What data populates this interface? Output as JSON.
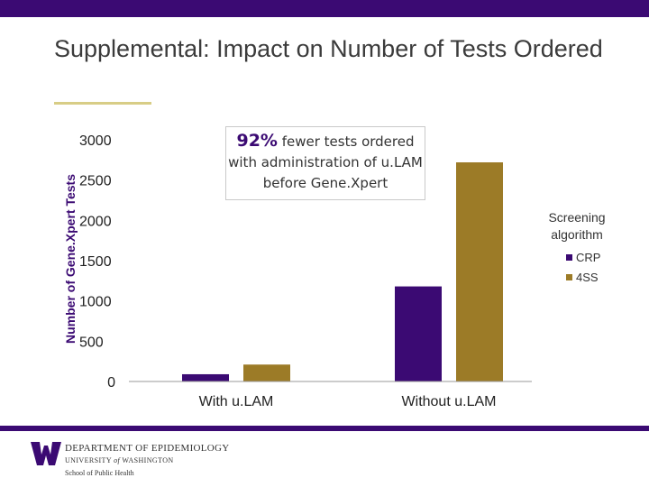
{
  "slide": {
    "title": "Supplemental: Impact on Number of Tests Ordered"
  },
  "callout": {
    "highlight": "92%",
    "text_rest": " fewer tests ordered with administration of u.LAM before Gene.Xpert"
  },
  "legend": {
    "title": "Screening algorithm",
    "items": [
      "CRP",
      "4SS"
    ]
  },
  "footer": {
    "line1": "DEPARTMENT OF EPIDEMIOLOGY",
    "line2_a": "UNIVERSITY ",
    "line2_of": "of",
    "line2_b": " WASHINGTON",
    "line3": "School of Public Health"
  },
  "colors": {
    "brand_purple": "#3b0a73",
    "crp": "#3b0a73",
    "fourss": "#9c7b27",
    "gold_accent": "#d8cd86"
  },
  "chart_data": {
    "type": "bar",
    "title": "",
    "xlabel": "",
    "ylabel": "Number of Gene.Xpert Tests",
    "ylim": [
      0,
      3000
    ],
    "yticks": [
      0,
      500,
      1000,
      1500,
      2000,
      2500,
      3000
    ],
    "categories": [
      "With u.LAM",
      "Without u.LAM"
    ],
    "series": [
      {
        "name": "CRP",
        "values": [
          90,
          1180
        ]
      },
      {
        "name": "4SS",
        "values": [
          210,
          2720
        ]
      }
    ],
    "legend_position": "right"
  }
}
